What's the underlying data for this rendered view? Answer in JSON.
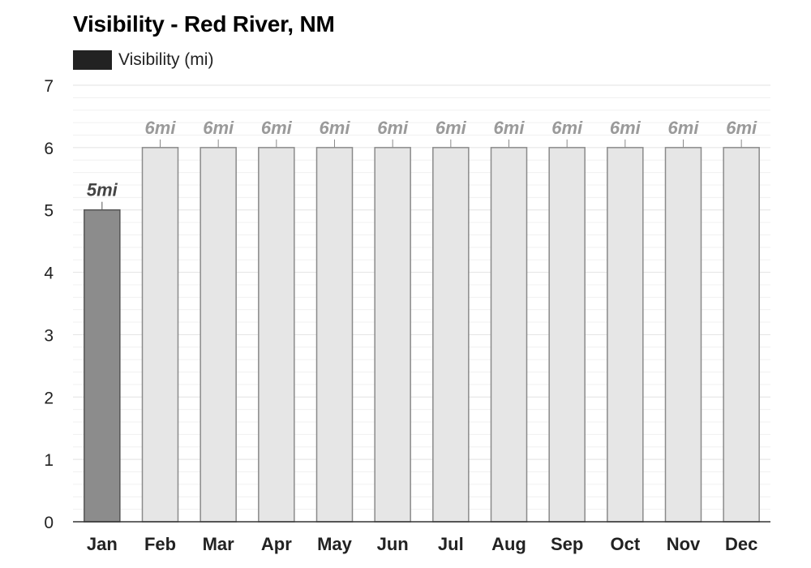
{
  "title": "Visibility - Red River, NM",
  "legend": {
    "label": "Visibility (mi)",
    "color": "#222222"
  },
  "colors": {
    "highlight_fill": "#8c8c8c",
    "highlight_stroke": "#555555",
    "normal_fill": "#e6e6e6",
    "normal_stroke": "#8a8a8a",
    "highlight_label": "#444444",
    "normal_label": "#9a9a9a",
    "gridline": "#e2e2e2",
    "minor_gridline": "#f0f0f0",
    "axis": "#333333"
  },
  "chart_data": {
    "type": "bar",
    "title": "Visibility - Red River, NM",
    "categories": [
      "Jan",
      "Feb",
      "Mar",
      "Apr",
      "May",
      "Jun",
      "Jul",
      "Aug",
      "Sep",
      "Oct",
      "Nov",
      "Dec"
    ],
    "series": [
      {
        "name": "Visibility (mi)",
        "values": [
          5,
          6,
          6,
          6,
          6,
          6,
          6,
          6,
          6,
          6,
          6,
          6
        ],
        "labels": [
          "5mi",
          "6mi",
          "6mi",
          "6mi",
          "6mi",
          "6mi",
          "6mi",
          "6mi",
          "6mi",
          "6mi",
          "6mi",
          "6mi"
        ]
      }
    ],
    "highlight_index": 0,
    "ylim": [
      0,
      7
    ],
    "yticks": [
      "0",
      "1",
      "2",
      "3",
      "4",
      "5",
      "6",
      "7"
    ],
    "grid": true,
    "legend_position": "top-left",
    "xlabel": "",
    "ylabel": ""
  }
}
